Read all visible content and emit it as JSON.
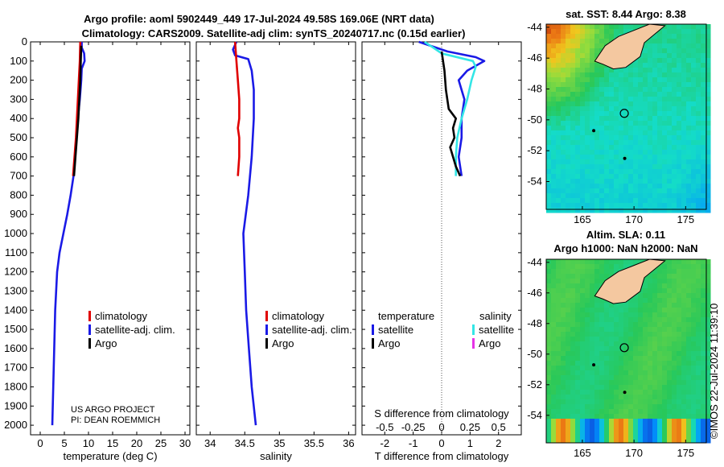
{
  "header": {
    "line1": "Argo profile: aoml 5902449_449 17-Jul-2024 49.58S 169.06E (NRT data)",
    "line2": "Climatology: CARS2009. Satellite-adj clim: synTS_20240717.nc (0.15d earlier)"
  },
  "credits": {
    "line1": "US ARGO PROJECT",
    "line2": "PI: DEAN ROEMMICH"
  },
  "watermark": "©IMOS 22-Jul-2024 11:39:10",
  "colors": {
    "argo": "#000000",
    "climatology": "#e00000",
    "satellite": "#1a1ae6",
    "sal_satellite": "#33e6e6",
    "sal_argo": "#e633e6",
    "land": "#f4c8a0"
  },
  "chart_data": [
    {
      "type": "line",
      "id": "temperature",
      "xlabel": "temperature (deg C)",
      "xlim": [
        -2,
        31
      ],
      "ylim": [
        2050,
        0
      ],
      "xticks": [
        0,
        5,
        10,
        15,
        20,
        25,
        30
      ],
      "xtick_labels": [
        "0",
        "5",
        "10",
        "15",
        "20",
        "25",
        "30"
      ],
      "yticks": [
        0,
        100,
        200,
        300,
        400,
        500,
        600,
        700,
        800,
        900,
        1000,
        1100,
        1200,
        1300,
        1400,
        1500,
        1600,
        1700,
        1800,
        1900,
        2000
      ],
      "legend": [
        "climatology",
        "satellite-adj. clim.",
        "Argo"
      ],
      "series": [
        {
          "name": "satellite-adj. clim.",
          "color": "#1a1ae6",
          "points": [
            [
              8.6,
              0
            ],
            [
              8.6,
              30
            ],
            [
              9.1,
              60
            ],
            [
              9.2,
              100
            ],
            [
              8.6,
              140
            ],
            [
              8.5,
              200
            ],
            [
              8.2,
              300
            ],
            [
              7.8,
              400
            ],
            [
              7.5,
              500
            ],
            [
              7.2,
              600
            ],
            [
              6.9,
              700
            ],
            [
              6.3,
              800
            ],
            [
              5.6,
              900
            ],
            [
              4.8,
              1000
            ],
            [
              4.0,
              1100
            ],
            [
              3.5,
              1200
            ],
            [
              3.3,
              1300
            ],
            [
              3.1,
              1400
            ],
            [
              3.0,
              1500
            ],
            [
              2.9,
              1600
            ],
            [
              2.8,
              1700
            ],
            [
              2.7,
              1800
            ],
            [
              2.6,
              1900
            ],
            [
              2.5,
              2000
            ]
          ]
        },
        {
          "name": "climatology",
          "color": "#e00000",
          "points": [
            [
              8.3,
              0
            ],
            [
              8.2,
              100
            ],
            [
              8.0,
              200
            ],
            [
              7.8,
              300
            ],
            [
              7.6,
              400
            ],
            [
              7.4,
              500
            ],
            [
              7.1,
              600
            ],
            [
              6.8,
              700
            ]
          ]
        },
        {
          "name": "Argo",
          "color": "#000000",
          "points": [
            [
              8.5,
              20
            ],
            [
              8.4,
              100
            ],
            [
              8.3,
              200
            ],
            [
              8.1,
              300
            ],
            [
              7.9,
              400
            ],
            [
              7.6,
              500
            ],
            [
              7.3,
              600
            ],
            [
              7.0,
              700
            ]
          ]
        }
      ]
    },
    {
      "type": "line",
      "id": "salinity",
      "xlabel": "salinity",
      "xlim": [
        33.8,
        36.1
      ],
      "ylim": [
        2050,
        0
      ],
      "xticks": [
        34,
        34.5,
        35,
        35.5,
        36
      ],
      "xtick_labels": [
        "34",
        "34.5",
        "35",
        "35.5",
        "36"
      ],
      "legend": [
        "climatology",
        "satellite-adj. clim.",
        "Argo"
      ],
      "series": [
        {
          "name": "satellite-adj. clim.",
          "color": "#1a1ae6",
          "points": [
            [
              34.38,
              0
            ],
            [
              34.33,
              40
            ],
            [
              34.36,
              70
            ],
            [
              34.55,
              90
            ],
            [
              34.6,
              150
            ],
            [
              34.63,
              250
            ],
            [
              34.63,
              400
            ],
            [
              34.6,
              600
            ],
            [
              34.55,
              800
            ],
            [
              34.48,
              1000
            ],
            [
              34.5,
              1200
            ],
            [
              34.52,
              1400
            ],
            [
              34.56,
              1600
            ],
            [
              34.6,
              1800
            ],
            [
              34.66,
              2000
            ]
          ]
        },
        {
          "name": "climatology",
          "color": "#e00000",
          "points": [
            [
              34.36,
              0
            ],
            [
              34.38,
              100
            ],
            [
              34.4,
              200
            ],
            [
              34.42,
              300
            ],
            [
              34.42,
              400
            ],
            [
              34.4,
              450
            ],
            [
              34.42,
              500
            ],
            [
              34.42,
              600
            ],
            [
              34.4,
              700
            ]
          ]
        }
      ]
    },
    {
      "type": "line",
      "id": "difference",
      "xlabel": "T difference from climatology",
      "xlabel_top": "S difference from climatology",
      "xlim": [
        -2.8,
        2.8
      ],
      "ylim": [
        2050,
        0
      ],
      "xticks": [
        -2,
        -1,
        0,
        1,
        2
      ],
      "xtick_labels": [
        "-2",
        "-1",
        "0",
        "1",
        "2"
      ],
      "sticks": [
        -0.5,
        -0.25,
        0,
        0.25,
        0.5
      ],
      "stick_labels": [
        "-0.5",
        "-0.25",
        "0",
        "0.25",
        "0.5"
      ],
      "s_scale": 4,
      "legend_titles": [
        "temperature",
        "salinity"
      ],
      "legend_left": [
        "satellite",
        "Argo"
      ],
      "legend_right": [
        "satellite",
        "Argo"
      ],
      "series": [
        {
          "name": "temperature satellite",
          "color": "#1a1ae6",
          "points": [
            [
              -0.8,
              0
            ],
            [
              0.2,
              50
            ],
            [
              1.2,
              80
            ],
            [
              1.5,
              100
            ],
            [
              0.9,
              150
            ],
            [
              0.6,
              200
            ],
            [
              0.8,
              300
            ],
            [
              0.7,
              400
            ],
            [
              0.7,
              500
            ],
            [
              0.6,
              600
            ],
            [
              0.7,
              700
            ]
          ]
        },
        {
          "name": "salinity satellite",
          "color": "#33e6e6",
          "points": [
            [
              -0.6,
              0
            ],
            [
              -0.3,
              30
            ],
            [
              0.0,
              60
            ],
            [
              1.1,
              100
            ],
            [
              1.2,
              130
            ],
            [
              1.05,
              200
            ],
            [
              0.9,
              300
            ],
            [
              0.7,
              400
            ],
            [
              0.55,
              500
            ],
            [
              0.5,
              600
            ],
            [
              0.5,
              700
            ]
          ]
        },
        {
          "name": "temperature Argo",
          "color": "#000000",
          "points": [
            [
              0.0,
              50
            ],
            [
              0.1,
              150
            ],
            [
              0.15,
              250
            ],
            [
              0.25,
              350
            ],
            [
              0.5,
              400
            ],
            [
              0.4,
              450
            ],
            [
              0.45,
              500
            ],
            [
              0.3,
              550
            ],
            [
              0.5,
              650
            ],
            [
              0.65,
              700
            ]
          ]
        }
      ]
    },
    {
      "type": "heatmap",
      "id": "sst_map",
      "title": "sat. SST: 8.44 Argo: 8.38",
      "xlim": [
        161.5,
        177
      ],
      "ylim": [
        -55.8,
        -43.8
      ],
      "xticks": [
        165,
        170,
        175
      ],
      "xtick_labels": [
        "165",
        "170",
        "175"
      ],
      "yticks": [
        -44,
        -46,
        -48,
        -50,
        -52,
        -54
      ],
      "ytick_labels": [
        "-44",
        "-46",
        "-48",
        "-50",
        "-52",
        "-54"
      ],
      "marker": [
        169.06,
        -49.58
      ]
    },
    {
      "type": "heatmap",
      "id": "sla_map",
      "title_line1": "Altim. SLA: 0.11",
      "title_line2": "Argo h1000: NaN h2000: NaN",
      "xlim": [
        161.5,
        177
      ],
      "ylim": [
        -55.8,
        -43.8
      ],
      "xticks": [
        165,
        170,
        175
      ],
      "xtick_labels": [
        "165",
        "170",
        "175"
      ],
      "yticks": [
        -44,
        -46,
        -48,
        -50,
        -52,
        -54
      ],
      "ytick_labels": [
        "-44",
        "-46",
        "-48",
        "-50",
        "-52",
        "-54"
      ],
      "marker": [
        169.06,
        -49.58
      ]
    }
  ]
}
